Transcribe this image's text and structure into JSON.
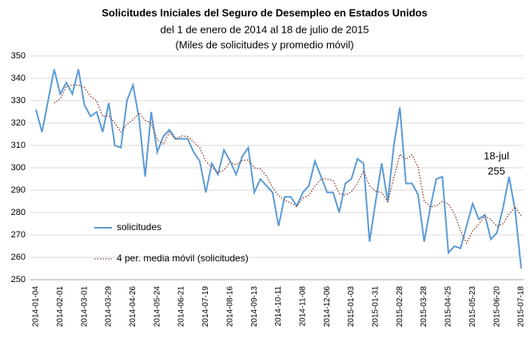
{
  "chart_data": {
    "type": "line",
    "title": "Solicitudes Iniciales del Seguro de Desempleo en Estados Unidos",
    "subtitle": [
      "del 1 de enero de 2014 al 18 de julio de 2015",
      "(Miles de solicitudes y promedio móvil)"
    ],
    "categories": [
      "2014-01-04",
      null,
      null,
      null,
      "2014-02-01",
      null,
      null,
      null,
      "2014-03-01",
      null,
      null,
      null,
      "2014-03-29",
      null,
      null,
      null,
      "2014-04-26",
      null,
      null,
      null,
      "2014-05-24",
      null,
      null,
      null,
      "2014-06-21",
      null,
      null,
      null,
      "2014-07-19",
      null,
      null,
      null,
      "2014-08-16",
      null,
      null,
      null,
      "2014-09-13",
      null,
      null,
      null,
      "2014-10-11",
      null,
      null,
      null,
      "2014-11-08",
      null,
      null,
      null,
      "2014-12-06",
      null,
      null,
      null,
      "2015-01-03",
      null,
      null,
      null,
      "2015-01-31",
      null,
      null,
      null,
      "2015-02-28",
      null,
      null,
      null,
      "2015-03-28",
      null,
      null,
      null,
      "2015-04-25",
      null,
      null,
      null,
      "2015-05-23",
      null,
      null,
      null,
      "2015-06-20",
      null,
      null,
      null,
      "2015-07-18"
    ],
    "series": [
      {
        "name": "solicitudes",
        "color": "#5b9bd5",
        "style": "solid",
        "values": [
          326,
          316,
          330,
          344,
          333,
          338,
          333,
          344,
          328,
          323,
          325,
          316,
          329,
          310,
          309,
          330,
          337,
          322,
          296,
          325,
          307,
          314,
          317,
          313,
          313,
          313,
          307,
          303,
          289,
          302,
          297,
          308,
          303,
          297,
          305,
          309,
          289,
          295,
          292,
          289,
          274,
          287,
          287,
          283,
          289,
          292,
          303,
          296,
          289,
          289,
          280,
          293,
          295,
          304,
          302,
          267,
          285,
          302,
          285,
          310,
          327,
          293,
          293,
          288,
          267,
          282,
          295,
          296,
          262,
          265,
          264,
          274,
          284,
          277,
          279,
          268,
          271,
          282,
          296,
          281,
          255
        ]
      },
      {
        "name": "4 per. media móvil (solicitudes)",
        "color": "#8b3a2a",
        "style": "dotted",
        "values": [
          null,
          null,
          null,
          329,
          330.8,
          336.3,
          337,
          337,
          335.8,
          332,
          330,
          323,
          323.3,
          320,
          316,
          319.5,
          321.5,
          324.5,
          321.3,
          320,
          312.5,
          310.5,
          315.8,
          312.8,
          314.3,
          314,
          311.5,
          309,
          303,
          300.3,
          297.8,
          299,
          302.5,
          301.3,
          303.3,
          303.5,
          300,
          299.5,
          296.3,
          291.3,
          287.5,
          285.5,
          284.3,
          282.8,
          286.5,
          287.8,
          291.8,
          295,
          295,
          294.3,
          288.5,
          287.8,
          289.3,
          293,
          298.5,
          292,
          289.5,
          289,
          284.8,
          295.5,
          306,
          303.8,
          305.8,
          300.3,
          285.3,
          282.5,
          283,
          285,
          283.8,
          279.5,
          271.8,
          266.3,
          271.8,
          274.8,
          278.5,
          277,
          273.8,
          275,
          279.3,
          282.5,
          278.5
        ]
      }
    ],
    "annotation": {
      "label": "18-jul",
      "value": 255
    },
    "ylim": [
      250,
      350
    ],
    "yticks": [
      250,
      260,
      270,
      280,
      290,
      300,
      310,
      320,
      330,
      340,
      350
    ],
    "grid": true
  }
}
